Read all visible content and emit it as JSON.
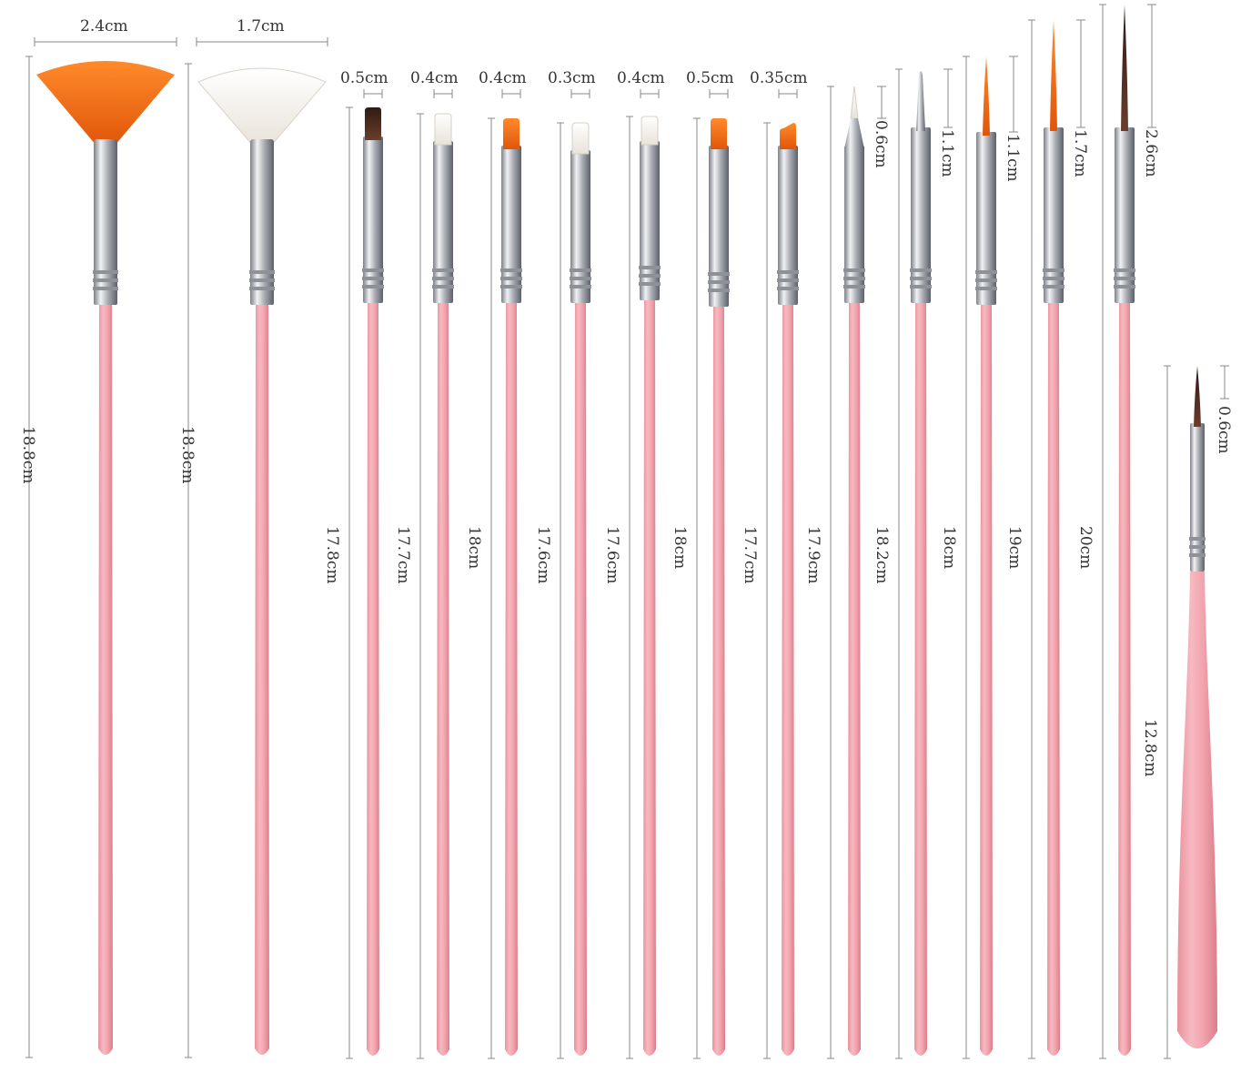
{
  "colors": {
    "handle": "#f2a3ad",
    "handle_dark": "#e48793",
    "ferrule": "#b9bcc2",
    "orange_bristle": "#f26a0f",
    "white_bristle": "#f4f0ea",
    "brown_bristle": "#4a2a20",
    "dim_line": "#8a8a8a"
  },
  "brushes": [
    {
      "type": "fan",
      "bristle": "orange",
      "head_label": "2.4cm",
      "length_label": "18.8cm"
    },
    {
      "type": "fan",
      "bristle": "white",
      "head_label": "1.7cm",
      "length_label": "18.8cm"
    },
    {
      "type": "flat",
      "bristle": "brown",
      "head_label": "0.5cm",
      "length_label": "17.8cm"
    },
    {
      "type": "flat",
      "bristle": "white",
      "head_label": "0.4cm",
      "length_label": "17.7cm"
    },
    {
      "type": "flat",
      "bristle": "orange",
      "head_label": "0.4cm",
      "length_label": "18cm"
    },
    {
      "type": "flat",
      "bristle": "white",
      "head_label": "0.3cm",
      "length_label": "17.6cm"
    },
    {
      "type": "flat",
      "bristle": "white",
      "head_label": "0.4cm",
      "length_label": "17.6cm"
    },
    {
      "type": "flat",
      "bristle": "orange",
      "head_label": "0.5cm",
      "length_label": "18cm"
    },
    {
      "type": "angled",
      "bristle": "orange",
      "head_label": "0.35cm",
      "length_label": "17.7cm"
    },
    {
      "type": "detail",
      "bristle": "white",
      "head_label": "0.6cm",
      "length_label": "17.9cm"
    },
    {
      "type": "dotting",
      "bristle": "silver",
      "head_label": "1.1cm",
      "length_label": "18.2cm"
    },
    {
      "type": "liner",
      "bristle": "orange",
      "head_label": "1.1cm",
      "length_label": "18cm"
    },
    {
      "type": "liner",
      "bristle": "orange",
      "head_label": "1.7cm",
      "length_label": "19cm"
    },
    {
      "type": "liner",
      "bristle": "brown",
      "head_label": "2.6cm",
      "length_label": "20cm"
    },
    {
      "type": "short",
      "bristle": "brown",
      "head_label": "0.6cm",
      "length_label": "12.8cm"
    }
  ]
}
